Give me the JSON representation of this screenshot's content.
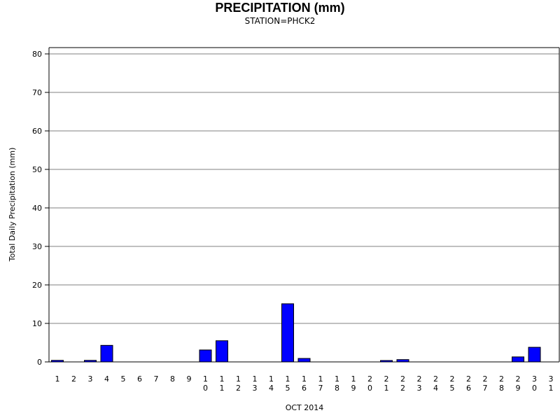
{
  "chart_data": {
    "type": "bar",
    "title": "PRECIPITATION (mm)",
    "subtitle": "STATION=PHCK2",
    "xlabel": "OCT 2014",
    "ylabel": "Total Daily Precipitation (mm)",
    "ylim": [
      0,
      80
    ],
    "yticks": [
      0,
      10,
      20,
      30,
      40,
      50,
      60,
      70,
      80
    ],
    "grid": true,
    "categories": [
      "1",
      "2",
      "3",
      "4",
      "5",
      "6",
      "7",
      "8",
      "9",
      "10",
      "11",
      "12",
      "13",
      "14",
      "15",
      "16",
      "17",
      "18",
      "19",
      "20",
      "21",
      "22",
      "23",
      "24",
      "25",
      "26",
      "27",
      "28",
      "29",
      "30",
      "31"
    ],
    "values": [
      0.4,
      0,
      0.4,
      4.3,
      0,
      0,
      0,
      0,
      0,
      3.1,
      5.5,
      0,
      0,
      0,
      15.1,
      0.9,
      0,
      0,
      0,
      0,
      0.2,
      0.6,
      0,
      0,
      0,
      0,
      0,
      0,
      1.3,
      3.8,
      0
    ],
    "bar_color": "#0000ff",
    "grid_color": "#808080"
  }
}
